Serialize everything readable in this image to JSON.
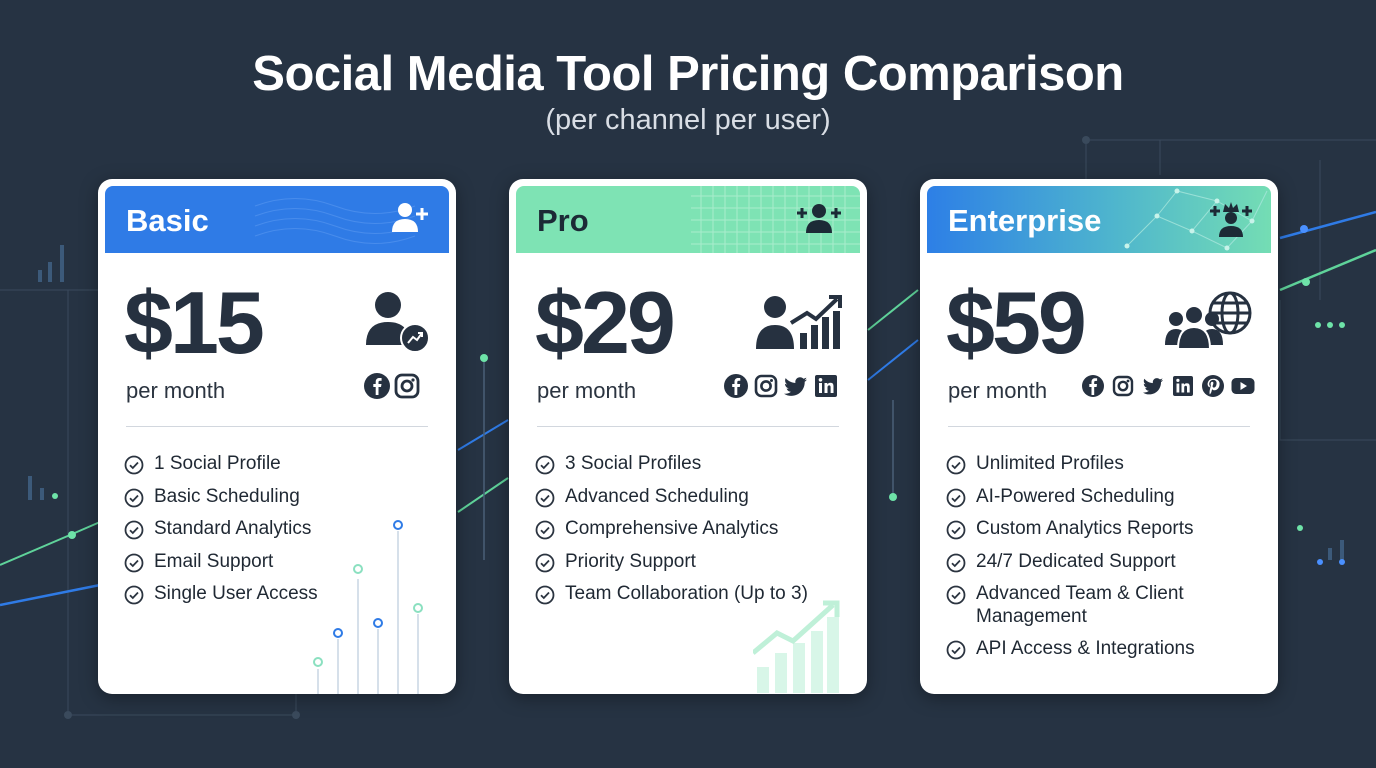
{
  "title": "Social Media Tool Pricing Comparison",
  "subtitle": "(per channel per user)",
  "colors": {
    "background": "#263343",
    "basic_header": "#2f7be6",
    "pro_header": "#7ee3b4",
    "enterprise_header_start": "#2d7fe6",
    "enterprise_header_end": "#74ddb4",
    "text_dark": "#263140"
  },
  "plans": [
    {
      "name": "Basic",
      "price": "$15",
      "period": "per month",
      "header_icon": "user-plus-icon",
      "hero_icon": "user-growth-icon",
      "socials": [
        "facebook-icon",
        "instagram-icon"
      ],
      "features": [
        "1 Social Profile",
        "Basic Scheduling",
        "Standard Analytics",
        "Email Support",
        "Single User Access"
      ]
    },
    {
      "name": "Pro",
      "price": "$29",
      "period": "per month",
      "header_icon": "users-plus-icon",
      "hero_icon": "user-chart-growth-icon",
      "socials": [
        "facebook-icon",
        "instagram-icon",
        "twitter-icon",
        "linkedin-icon"
      ],
      "features": [
        "3 Social Profiles",
        "Advanced Scheduling",
        "Comprehensive Analytics",
        "Priority Support",
        "Team Collaboration (Up to 3)"
      ]
    },
    {
      "name": "Enterprise",
      "price": "$59",
      "period": "per month",
      "header_icon": "user-crown-icon",
      "hero_icon": "team-globe-icon",
      "socials": [
        "facebook-icon",
        "instagram-icon",
        "twitter-icon",
        "linkedin-icon",
        "pinterest-icon",
        "youtube-icon"
      ],
      "features": [
        "Unlimited Profiles",
        "AI-Powered Scheduling",
        "Custom Analytics Reports",
        "24/7 Dedicated Support",
        "Advanced Team & Client\nManagement",
        "API Access & Integrations"
      ]
    }
  ]
}
